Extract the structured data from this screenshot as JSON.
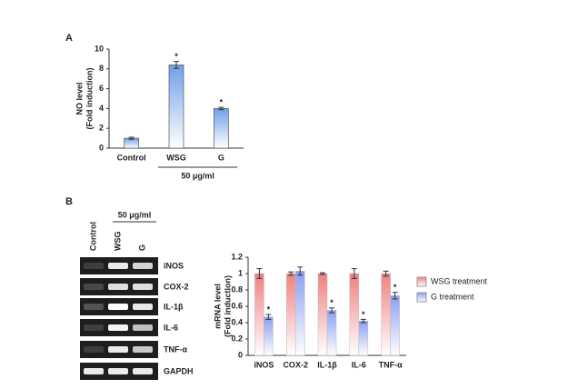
{
  "panel_labels": [
    "A",
    "B"
  ],
  "chart_data": [
    {
      "type": "bar",
      "y_label": [
        "NO level",
        "(Fold induction)"
      ],
      "categories": [
        "Control",
        "WSG",
        "G"
      ],
      "values": [
        1,
        8.4,
        4.0
      ],
      "errors": [
        0.1,
        0.35,
        0.12
      ],
      "significance": [
        null,
        "*",
        "*"
      ],
      "color": "#6f9fe8",
      "ylim": [
        0,
        10
      ],
      "yticks": [
        0,
        2,
        4,
        6,
        8,
        10
      ],
      "x_group_label": "50 μg/ml"
    },
    {
      "type": "bar",
      "y_label": [
        "mRNA level",
        "(Fold induction)"
      ],
      "categories": [
        "iNOS",
        "COX-2",
        "IL-1β",
        "IL-6",
        "TNF-α"
      ],
      "series": [
        {
          "name": "WSG treatment",
          "color": "#f08080",
          "values": [
            1,
            1,
            1,
            1,
            1
          ],
          "errors": [
            0.06,
            0.02,
            0.01,
            0.06,
            0.03
          ]
        },
        {
          "name": "G treatment",
          "color": "#8c9ef0",
          "values": [
            0.47,
            1.03,
            0.55,
            0.42,
            0.73
          ],
          "errors": [
            0.03,
            0.05,
            0.03,
            0.02,
            0.04
          ],
          "significance": [
            "*",
            null,
            "*",
            "*",
            "*"
          ]
        }
      ],
      "ylim": [
        0,
        1.2
      ],
      "yticks": [
        0,
        0.2,
        0.4,
        0.6,
        0.8,
        1,
        1.2
      ]
    }
  ],
  "gel": {
    "dose": "50 μg/ml",
    "lanes": [
      "Control",
      "WSG",
      "G"
    ],
    "genes": [
      "iNOS",
      "COX-2",
      "IL-1β",
      "IL-6",
      "TNF-α",
      "GAPDH"
    ]
  }
}
